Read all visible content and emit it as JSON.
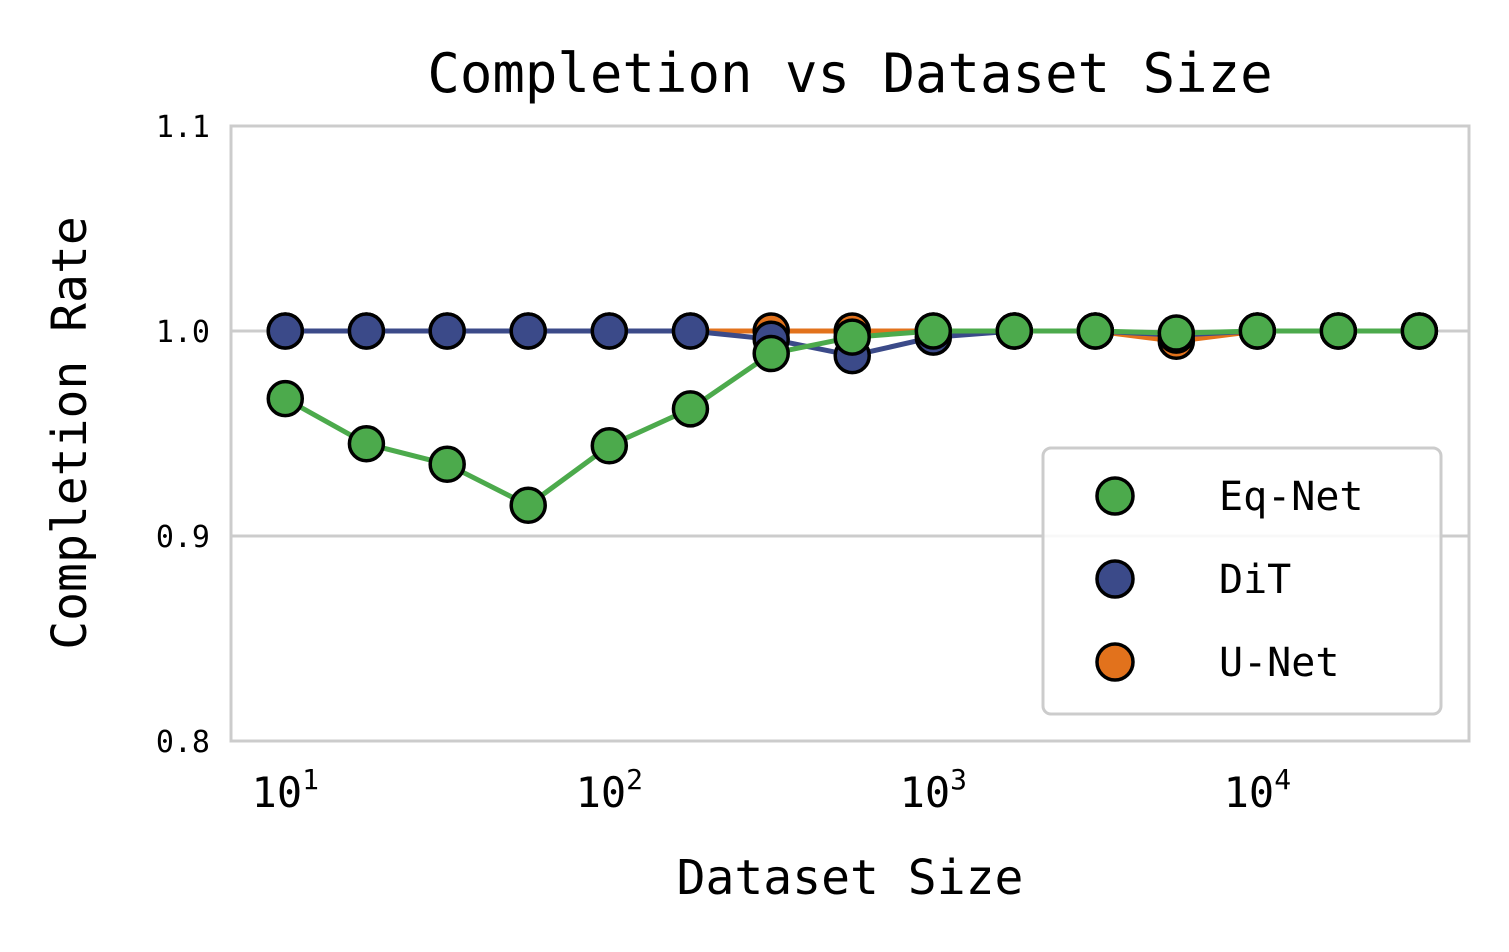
{
  "chart_data": {
    "type": "line",
    "title": "Completion vs Dataset Size",
    "xlabel": "Dataset Size",
    "ylabel": "Completion Rate",
    "xscale": "log",
    "xlim": [
      6.8,
      45000
    ],
    "ylim": [
      0.8,
      1.1
    ],
    "yticks": [
      {
        "value": 0.8,
        "label": "0.8"
      },
      {
        "value": 0.9,
        "label": "0.9"
      },
      {
        "value": 1.0,
        "label": "1.0"
      },
      {
        "value": 1.1,
        "label": "1.1"
      }
    ],
    "xticks": [
      {
        "value": 10,
        "base": "10",
        "exp": "1"
      },
      {
        "value": 100,
        "base": "10",
        "exp": "2"
      },
      {
        "value": 1000,
        "base": "10",
        "exp": "3"
      },
      {
        "value": 10000,
        "base": "10",
        "exp": "4"
      }
    ],
    "grid": "horizontal",
    "legend_position": "lower-right",
    "x": [
      10,
      17.8,
      31.6,
      56.2,
      100,
      178,
      316,
      562,
      1000,
      1778,
      3162,
      5623,
      10000,
      17783,
      31623
    ],
    "series": [
      {
        "name": "U-Net",
        "color": "#e2721c",
        "values": [
          1.0,
          1.0,
          1.0,
          1.0,
          1.0,
          1.0,
          1.0,
          1.0,
          1.0,
          1.0,
          1.0,
          0.995,
          1.0,
          1.0,
          1.0
        ]
      },
      {
        "name": "DiT",
        "color": "#3b4a89",
        "values": [
          1.0,
          1.0,
          1.0,
          1.0,
          1.0,
          1.0,
          0.996,
          0.988,
          0.997,
          1.0,
          1.0,
          0.998,
          1.0,
          1.0,
          1.0
        ]
      },
      {
        "name": "Eq-Net",
        "color": "#4caa4c",
        "values": [
          0.967,
          0.945,
          0.935,
          0.915,
          0.944,
          0.962,
          0.989,
          0.997,
          1.0,
          1.0,
          1.0,
          0.999,
          1.0,
          1.0,
          1.0
        ]
      }
    ],
    "legend_order": [
      "Eq-Net",
      "DiT",
      "U-Net"
    ]
  }
}
